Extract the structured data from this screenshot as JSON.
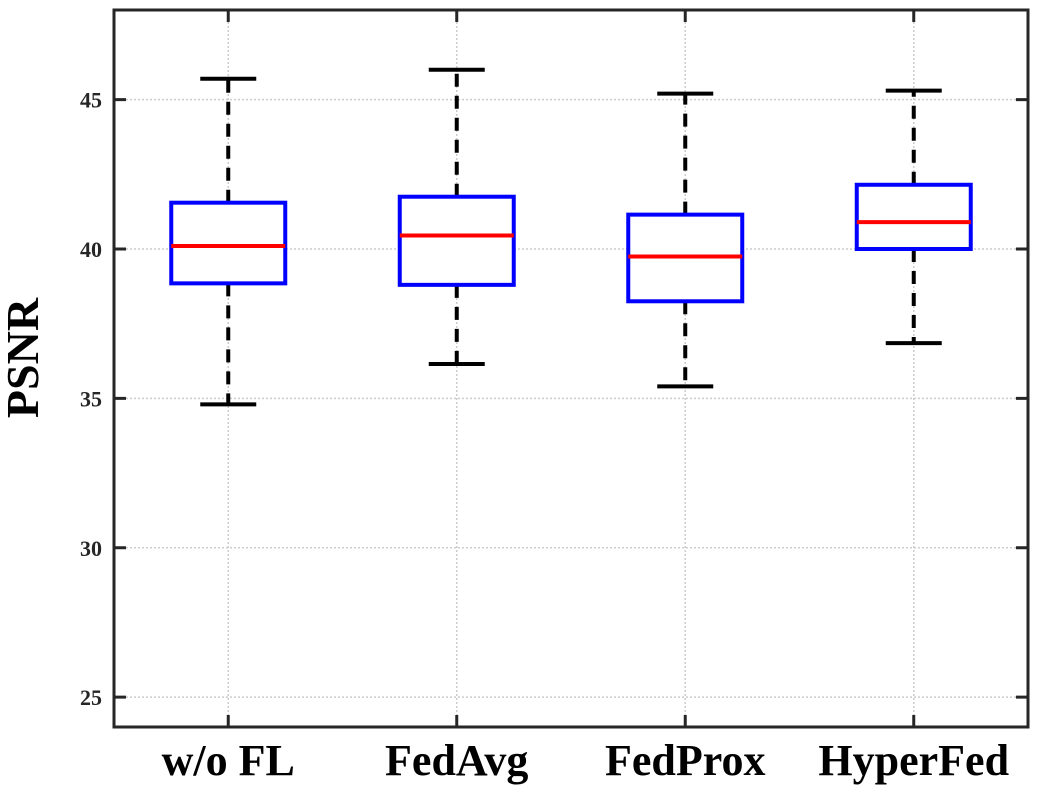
{
  "chart_data": {
    "type": "boxplot",
    "title": "",
    "xlabel": "",
    "ylabel": "PSNR",
    "ylim": [
      24,
      48
    ],
    "yticks": [
      25,
      30,
      35,
      40,
      45
    ],
    "categories": [
      "w/o FL",
      "FedAvg",
      "FedProx",
      "HyperFed"
    ],
    "boxes": [
      {
        "whisker_low": 34.8,
        "q1": 38.85,
        "median": 40.1,
        "q3": 41.55,
        "whisker_high": 45.7
      },
      {
        "whisker_low": 36.15,
        "q1": 38.8,
        "median": 40.45,
        "q3": 41.75,
        "whisker_high": 46.0
      },
      {
        "whisker_low": 35.4,
        "q1": 38.25,
        "median": 39.75,
        "q3": 41.15,
        "whisker_high": 45.2
      },
      {
        "whisker_low": 36.85,
        "q1": 40.0,
        "median": 40.9,
        "q3": 42.15,
        "whisker_high": 45.3
      }
    ],
    "grid": true,
    "colors": {
      "box": "#0000ff",
      "median": "#ff0000",
      "whisker": "#000000",
      "axes": "#262626",
      "grid": "#cccccc"
    }
  }
}
